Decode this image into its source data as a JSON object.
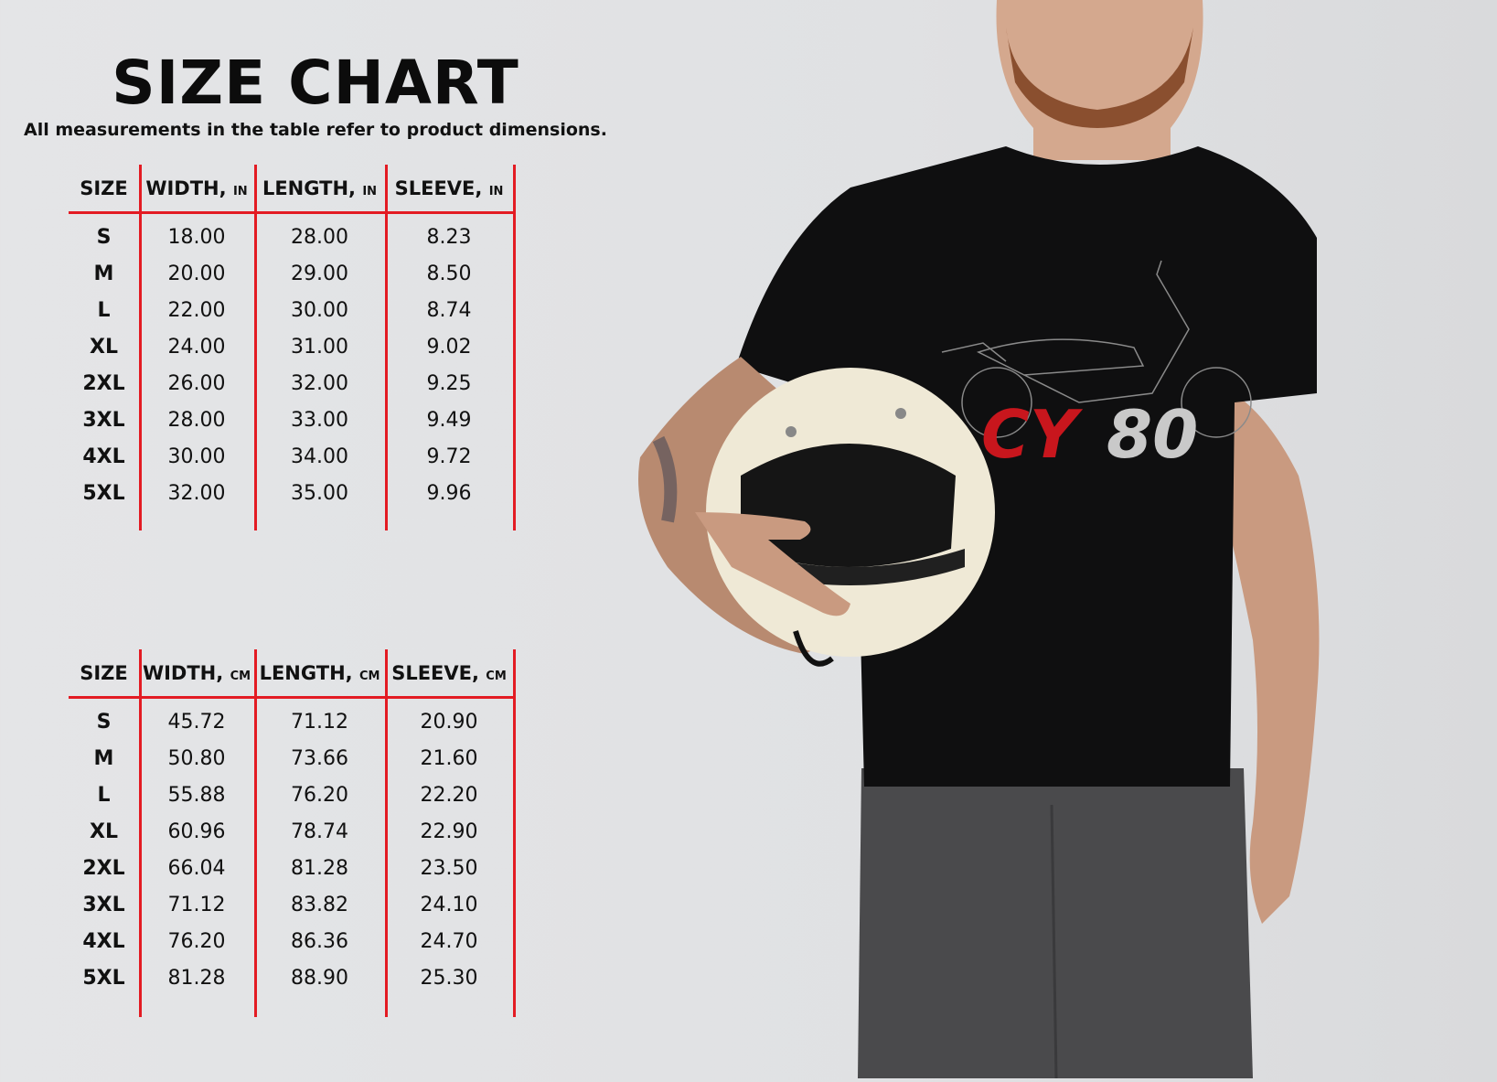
{
  "title": "SIZE CHART",
  "subtitle": "All measurements in the table refer to product dimensions.",
  "accent_color": "#e31b23",
  "tables": [
    {
      "headers": [
        {
          "label": "SIZE",
          "unit": ""
        },
        {
          "label": "WIDTH,",
          "unit": "IN"
        },
        {
          "label": "LENGTH,",
          "unit": "IN"
        },
        {
          "label": "SLEEVE,",
          "unit": "IN"
        }
      ],
      "rows": [
        [
          "S",
          "18.00",
          "28.00",
          "8.23"
        ],
        [
          "M",
          "20.00",
          "29.00",
          "8.50"
        ],
        [
          "L",
          "22.00",
          "30.00",
          "8.74"
        ],
        [
          "XL",
          "24.00",
          "31.00",
          "9.02"
        ],
        [
          "2XL",
          "26.00",
          "32.00",
          "9.25"
        ],
        [
          "3XL",
          "28.00",
          "33.00",
          "9.49"
        ],
        [
          "4XL",
          "30.00",
          "34.00",
          "9.72"
        ],
        [
          "5XL",
          "32.00",
          "35.00",
          "9.96"
        ]
      ]
    },
    {
      "headers": [
        {
          "label": "SIZE",
          "unit": ""
        },
        {
          "label": "WIDTH,",
          "unit": "CM"
        },
        {
          "label": "LENGTH,",
          "unit": "CM"
        },
        {
          "label": "SLEEVE,",
          "unit": "CM"
        }
      ],
      "rows": [
        [
          "S",
          "45.72",
          "71.12",
          "20.90"
        ],
        [
          "M",
          "50.80",
          "73.66",
          "21.60"
        ],
        [
          "L",
          "55.88",
          "76.20",
          "22.20"
        ],
        [
          "XL",
          "60.96",
          "78.74",
          "22.90"
        ],
        [
          "2XL",
          "66.04",
          "81.28",
          "23.50"
        ],
        [
          "3XL",
          "71.12",
          "83.82",
          "24.10"
        ],
        [
          "4XL",
          "76.20",
          "86.36",
          "24.70"
        ],
        [
          "5XL",
          "81.28",
          "88.90",
          "25.30"
        ]
      ]
    }
  ],
  "photo": {
    "shirt_logo": {
      "part1": "CY",
      "part2": "80",
      "part1_color": "#c8161d",
      "part2_color": "#c9c9c9"
    }
  }
}
